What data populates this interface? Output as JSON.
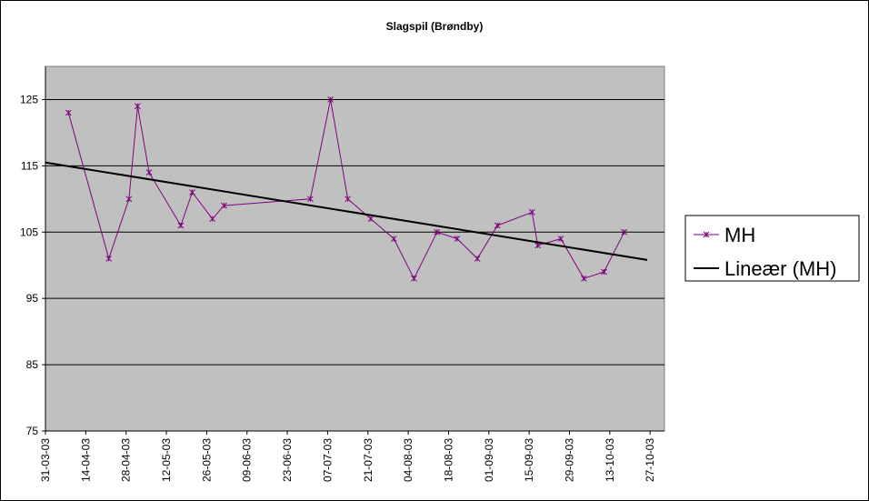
{
  "chart_data": {
    "type": "line",
    "title": "Slagspil (Brøndby)",
    "xlabel": "",
    "ylabel": "",
    "ylim": [
      75,
      130
    ],
    "y_ticks": [
      75,
      85,
      95,
      105,
      115,
      125
    ],
    "x_range": [
      "2003-03-31",
      "2003-11-01"
    ],
    "x_ticks": [
      "31-03-03",
      "14-04-03",
      "28-04-03",
      "12-05-03",
      "26-05-03",
      "09-06-03",
      "23-06-03",
      "07-07-03",
      "21-07-03",
      "04-08-03",
      "18-08-03",
      "01-09-03",
      "15-09-03",
      "29-09-03",
      "13-10-03",
      "27-10-03"
    ],
    "grid": true,
    "legend": "right",
    "plot_bg": "#c0c0c0",
    "series": [
      {
        "name": "MH",
        "color": "#800080",
        "marker": "star",
        "x": [
          "2003-04-08",
          "2003-04-22",
          "2003-04-29",
          "2003-05-02",
          "2003-05-06",
          "2003-05-17",
          "2003-05-21",
          "2003-05-28",
          "2003-06-01",
          "2003-07-01",
          "2003-07-08",
          "2003-07-14",
          "2003-07-22",
          "2003-07-30",
          "2003-08-06",
          "2003-08-14",
          "2003-08-21",
          "2003-08-28",
          "2003-09-04",
          "2003-09-16",
          "2003-09-18",
          "2003-09-26",
          "2003-10-04",
          "2003-10-11",
          "2003-10-18"
        ],
        "y": [
          123,
          101,
          110,
          124,
          114,
          106,
          111,
          107,
          109,
          110,
          125,
          110,
          107,
          104,
          98,
          105,
          104,
          101,
          106,
          108,
          103,
          104,
          98,
          99,
          105
        ]
      },
      {
        "name": "Lineær (MH)",
        "color": "#000000",
        "type": "trendline",
        "x": [
          "2003-03-31",
          "2003-10-26"
        ],
        "y": [
          115.5,
          100.8
        ]
      }
    ]
  }
}
